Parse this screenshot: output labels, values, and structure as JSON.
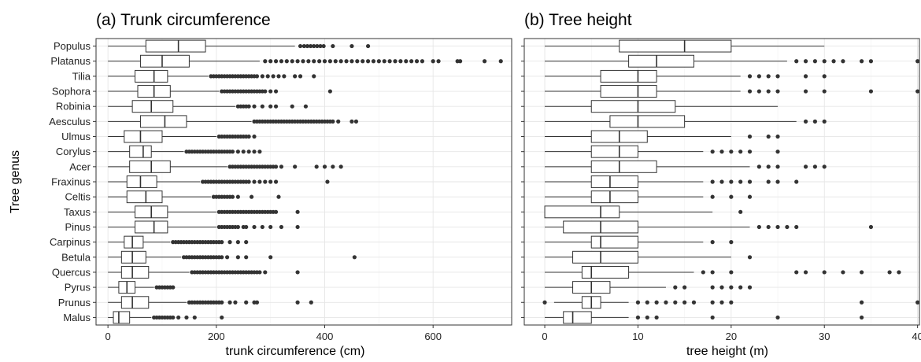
{
  "y_axis_label": "Tree genus",
  "chart_data": [
    {
      "type": "boxplot",
      "title": "(a) Trunk circumference",
      "xlabel": "trunk circumference (cm)",
      "xlim": [
        -22,
        745
      ],
      "xticks": [
        0,
        200,
        400,
        600
      ],
      "grid": true,
      "categories": [
        "Populus",
        "Platanus",
        "Tilia",
        "Sophora",
        "Robinia",
        "Aesculus",
        "Ulmus",
        "Corylus",
        "Acer",
        "Fraxinus",
        "Celtis",
        "Taxus",
        "Pinus",
        "Carpinus",
        "Betula",
        "Quercus",
        "Pyrus",
        "Prunus",
        "Malus"
      ],
      "boxes": [
        {
          "genus": "Populus",
          "min": 0,
          "q1": 70,
          "median": 130,
          "q3": 180,
          "max": 345,
          "outliers": [
            355,
            362,
            368,
            374,
            380,
            386,
            392,
            398,
            415,
            450,
            480
          ]
        },
        {
          "genus": "Platanus",
          "min": 0,
          "q1": 60,
          "median": 100,
          "q3": 150,
          "max": 280,
          "outliers": [
            290,
            300,
            310,
            320,
            330,
            340,
            350,
            360,
            370,
            380,
            390,
            400,
            410,
            420,
            430,
            440,
            450,
            460,
            470,
            480,
            490,
            500,
            510,
            520,
            530,
            540,
            550,
            560,
            570,
            580,
            600,
            610,
            645,
            650,
            695,
            725
          ]
        },
        {
          "genus": "Tilia",
          "min": 0,
          "q1": 50,
          "median": 85,
          "q3": 110,
          "max": 185,
          "outliers": [
            190,
            195,
            200,
            205,
            210,
            215,
            220,
            225,
            230,
            235,
            240,
            245,
            250,
            255,
            260,
            265,
            270,
            275,
            285,
            295,
            305,
            315,
            325,
            345,
            355,
            380
          ]
        },
        {
          "genus": "Sophora",
          "min": 0,
          "q1": 55,
          "median": 85,
          "q3": 115,
          "max": 205,
          "outliers": [
            210,
            215,
            220,
            225,
            230,
            235,
            240,
            245,
            250,
            255,
            260,
            265,
            270,
            275,
            280,
            285,
            290,
            300,
            310,
            410
          ]
        },
        {
          "genus": "Robinia",
          "min": 0,
          "q1": 45,
          "median": 80,
          "q3": 120,
          "max": 235,
          "outliers": [
            240,
            245,
            250,
            255,
            260,
            270,
            285,
            300,
            310,
            340,
            365
          ]
        },
        {
          "genus": "Aesculus",
          "min": 0,
          "q1": 60,
          "median": 105,
          "q3": 145,
          "max": 265,
          "outliers": [
            270,
            275,
            280,
            285,
            290,
            295,
            300,
            305,
            310,
            315,
            320,
            325,
            330,
            335,
            340,
            345,
            350,
            355,
            360,
            365,
            370,
            375,
            380,
            385,
            390,
            395,
            400,
            405,
            410,
            415,
            425,
            450,
            458
          ]
        },
        {
          "genus": "Ulmus",
          "min": 0,
          "q1": 30,
          "median": 60,
          "q3": 100,
          "max": 200,
          "outliers": [
            205,
            210,
            215,
            220,
            225,
            230,
            235,
            240,
            245,
            250,
            255,
            260,
            270
          ]
        },
        {
          "genus": "Corylus",
          "min": 0,
          "q1": 40,
          "median": 65,
          "q3": 80,
          "max": 140,
          "outliers": [
            145,
            150,
            155,
            160,
            165,
            170,
            175,
            180,
            185,
            190,
            195,
            200,
            205,
            210,
            215,
            220,
            225,
            230,
            240,
            250,
            260,
            270,
            280
          ]
        },
        {
          "genus": "Acer",
          "min": 0,
          "q1": 40,
          "median": 80,
          "q3": 115,
          "max": 220,
          "outliers": [
            225,
            230,
            235,
            240,
            245,
            250,
            255,
            260,
            265,
            270,
            275,
            280,
            285,
            290,
            295,
            300,
            305,
            310,
            320,
            345,
            385,
            400,
            415,
            430
          ]
        },
        {
          "genus": "Fraxinus",
          "min": 0,
          "q1": 35,
          "median": 60,
          "q3": 90,
          "max": 170,
          "outliers": [
            175,
            180,
            185,
            190,
            195,
            200,
            205,
            210,
            215,
            220,
            225,
            230,
            235,
            240,
            245,
            250,
            255,
            260,
            270,
            280,
            290,
            300,
            310,
            405
          ]
        },
        {
          "genus": "Celtis",
          "min": 0,
          "q1": 35,
          "median": 70,
          "q3": 100,
          "max": 190,
          "outliers": [
            195,
            200,
            205,
            210,
            215,
            220,
            225,
            230,
            240,
            265,
            315
          ]
        },
        {
          "genus": "Taxus",
          "min": 0,
          "q1": 50,
          "median": 80,
          "q3": 110,
          "max": 200,
          "outliers": [
            205,
            210,
            215,
            220,
            225,
            230,
            235,
            240,
            245,
            250,
            255,
            260,
            265,
            270,
            275,
            280,
            285,
            290,
            295,
            300,
            305,
            310,
            350
          ]
        },
        {
          "genus": "Pinus",
          "min": 0,
          "q1": 50,
          "median": 85,
          "q3": 110,
          "max": 200,
          "outliers": [
            205,
            210,
            215,
            220,
            225,
            230,
            235,
            240,
            250,
            255,
            270,
            285,
            300,
            320,
            350
          ]
        },
        {
          "genus": "Carpinus",
          "min": 0,
          "q1": 30,
          "median": 45,
          "q3": 65,
          "max": 115,
          "outliers": [
            120,
            125,
            130,
            135,
            140,
            145,
            150,
            155,
            160,
            165,
            170,
            175,
            180,
            185,
            190,
            195,
            200,
            205,
            210,
            225,
            240,
            255
          ]
        },
        {
          "genus": "Betula",
          "min": 0,
          "q1": 25,
          "median": 45,
          "q3": 70,
          "max": 135,
          "outliers": [
            140,
            145,
            150,
            155,
            160,
            165,
            170,
            175,
            180,
            185,
            190,
            195,
            200,
            205,
            210,
            220,
            240,
            255,
            300,
            455
          ]
        },
        {
          "genus": "Quercus",
          "min": 0,
          "q1": 25,
          "median": 45,
          "q3": 75,
          "max": 150,
          "outliers": [
            155,
            160,
            165,
            170,
            175,
            180,
            185,
            190,
            195,
            200,
            205,
            210,
            215,
            220,
            225,
            230,
            235,
            240,
            245,
            250,
            255,
            260,
            265,
            270,
            275,
            280,
            290,
            350
          ]
        },
        {
          "genus": "Pyrus",
          "min": 0,
          "q1": 20,
          "median": 35,
          "q3": 50,
          "max": 85,
          "outliers": [
            90,
            95,
            100,
            105,
            110,
            115,
            120
          ]
        },
        {
          "genus": "Prunus",
          "min": 0,
          "q1": 25,
          "median": 45,
          "q3": 75,
          "max": 145,
          "outliers": [
            150,
            155,
            160,
            165,
            170,
            175,
            180,
            185,
            190,
            195,
            200,
            205,
            210,
            225,
            235,
            255,
            270,
            275,
            350,
            375
          ]
        },
        {
          "genus": "Malus",
          "min": 0,
          "q1": 10,
          "median": 20,
          "q3": 40,
          "max": 80,
          "outliers": [
            85,
            90,
            95,
            100,
            105,
            110,
            115,
            120,
            130,
            145,
            160,
            210
          ]
        }
      ]
    },
    {
      "type": "boxplot",
      "title": "(b) Tree height",
      "xlabel": "tree height (m)",
      "xlim": [
        -2.2,
        40.2
      ],
      "xticks": [
        0,
        10,
        20,
        30,
        40
      ],
      "grid": true,
      "categories": [
        "Populus",
        "Platanus",
        "Tilia",
        "Sophora",
        "Robinia",
        "Aesculus",
        "Ulmus",
        "Corylus",
        "Acer",
        "Fraxinus",
        "Celtis",
        "Taxus",
        "Pinus",
        "Carpinus",
        "Betula",
        "Quercus",
        "Pyrus",
        "Prunus",
        "Malus"
      ],
      "boxes": [
        {
          "genus": "Populus",
          "min": 0,
          "q1": 8,
          "median": 15,
          "q3": 20,
          "max": 30,
          "outliers": []
        },
        {
          "genus": "Platanus",
          "min": 0,
          "q1": 9,
          "median": 12,
          "q3": 16,
          "max": 26,
          "outliers": [
            27,
            28,
            29,
            30,
            31,
            32,
            34,
            35,
            40
          ]
        },
        {
          "genus": "Tilia",
          "min": 0,
          "q1": 6,
          "median": 10,
          "q3": 12,
          "max": 21,
          "outliers": [
            22,
            23,
            24,
            25,
            28,
            30
          ]
        },
        {
          "genus": "Sophora",
          "min": 0,
          "q1": 6,
          "median": 10,
          "q3": 12,
          "max": 21,
          "outliers": [
            22,
            23,
            24,
            25,
            28,
            30,
            35,
            40
          ]
        },
        {
          "genus": "Robinia",
          "min": 0,
          "q1": 5,
          "median": 10,
          "q3": 14,
          "max": 25,
          "outliers": []
        },
        {
          "genus": "Aesculus",
          "min": 0,
          "q1": 7,
          "median": 10,
          "q3": 15,
          "max": 27,
          "outliers": [
            28,
            29,
            30
          ]
        },
        {
          "genus": "Ulmus",
          "min": 0,
          "q1": 5,
          "median": 8,
          "q3": 11,
          "max": 20,
          "outliers": [
            22,
            24,
            25
          ]
        },
        {
          "genus": "Corylus",
          "min": 0,
          "q1": 5,
          "median": 8,
          "q3": 10,
          "max": 17,
          "outliers": [
            18,
            19,
            20,
            21,
            22,
            25
          ]
        },
        {
          "genus": "Acer",
          "min": 0,
          "q1": 5,
          "median": 8,
          "q3": 12,
          "max": 22,
          "outliers": [
            23,
            24,
            25,
            28,
            29,
            30
          ]
        },
        {
          "genus": "Fraxinus",
          "min": 0,
          "q1": 5,
          "median": 7,
          "q3": 10,
          "max": 17,
          "outliers": [
            18,
            19,
            20,
            21,
            22,
            24,
            25,
            27
          ]
        },
        {
          "genus": "Celtis",
          "min": 0,
          "q1": 5,
          "median": 7,
          "q3": 10,
          "max": 17,
          "outliers": [
            18,
            20,
            22
          ]
        },
        {
          "genus": "Taxus",
          "min": 0,
          "q1": 0,
          "median": 6,
          "q3": 8,
          "max": 18,
          "outliers": [
            21
          ]
        },
        {
          "genus": "Pinus",
          "min": 0,
          "q1": 2,
          "median": 6,
          "q3": 10,
          "max": 22,
          "outliers": [
            23,
            24,
            25,
            26,
            27,
            35
          ]
        },
        {
          "genus": "Carpinus",
          "min": 0,
          "q1": 5,
          "median": 6,
          "q3": 10,
          "max": 17,
          "outliers": [
            18,
            20
          ]
        },
        {
          "genus": "Betula",
          "min": 0,
          "q1": 3,
          "median": 6,
          "q3": 10,
          "max": 20,
          "outliers": [
            22
          ]
        },
        {
          "genus": "Quercus",
          "min": 0,
          "q1": 4,
          "median": 5,
          "q3": 9,
          "max": 16,
          "outliers": [
            17,
            18,
            20,
            27,
            28,
            30,
            32,
            34,
            37,
            38
          ]
        },
        {
          "genus": "Pyrus",
          "min": 0,
          "q1": 3,
          "median": 5,
          "q3": 7,
          "max": 13,
          "outliers": [
            14,
            15,
            18,
            19,
            20,
            21,
            22
          ]
        },
        {
          "genus": "Prunus",
          "min": 1,
          "q1": 4,
          "median": 5,
          "q3": 6,
          "max": 9,
          "outliers": [
            0,
            10,
            11,
            12,
            13,
            14,
            15,
            16,
            18,
            19,
            20,
            34,
            40
          ]
        },
        {
          "genus": "Malus",
          "min": 0,
          "q1": 2,
          "median": 3,
          "q3": 5,
          "max": 9,
          "outliers": [
            10,
            11,
            12,
            18,
            25,
            34
          ]
        }
      ]
    }
  ]
}
